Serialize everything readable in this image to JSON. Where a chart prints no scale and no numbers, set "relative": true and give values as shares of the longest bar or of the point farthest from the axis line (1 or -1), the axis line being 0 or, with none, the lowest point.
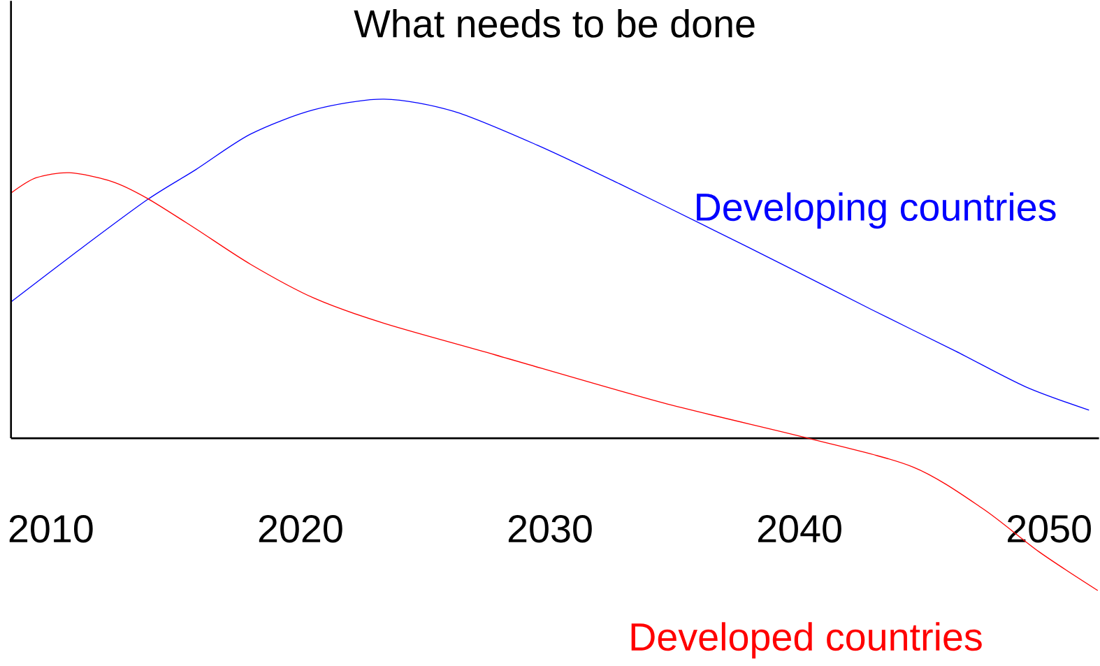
{
  "chart_data": {
    "type": "line",
    "title": "What needs to be done",
    "relative": true,
    "xlim": [
      2008.4,
      2052
    ],
    "xticks": [
      2010,
      2020,
      2030,
      2040,
      2050
    ],
    "series": [
      {
        "name": "Developing countries",
        "color": "#0000ff",
        "x": [
          2008.4,
          2011.05,
          2013.85,
          2015.8,
          2018.0,
          2020.55,
          2023.35,
          2026.15,
          2029.5,
          2032.85,
          2036.2,
          2039.55,
          2042.9,
          2046.25,
          2049.05,
          2051.6
        ],
        "values": [
          0.402,
          0.551,
          0.703,
          0.792,
          0.897,
          0.969,
          1,
          0.964,
          0.864,
          0.748,
          0.627,
          0.504,
          0.379,
          0.257,
          0.152,
          0.083
        ]
      },
      {
        "name": "Developed countries",
        "color": "#ff0000",
        "x": [
          2008.4,
          2009.4,
          2010.75,
          2012.45,
          2013.85,
          2015.8,
          2018.0,
          2020.55,
          2023.35,
          2027.8,
          2034.5,
          2040.35,
          2044.55,
          2047.35,
          2049.6,
          2051.95
        ],
        "values": [
          0.723,
          0.768,
          0.783,
          0.757,
          0.708,
          0.618,
          0.513,
          0.413,
          0.339,
          0.246,
          0.105,
          0,
          -0.085,
          -0.208,
          -0.335,
          -0.449
        ]
      }
    ]
  }
}
